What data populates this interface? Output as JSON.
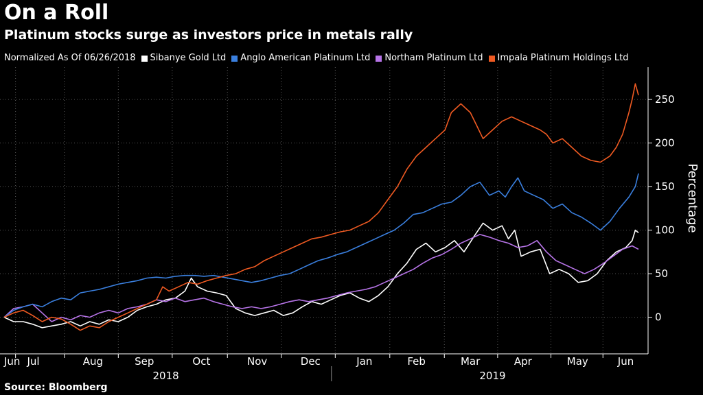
{
  "title": "On a Roll",
  "subtitle": "Platinum stocks surge as investors price in metals rally",
  "legend_header": "Normalized As Of 06/26/2018",
  "source": "Source: Bloomberg",
  "chart_data": {
    "type": "line",
    "title": "On a Roll",
    "subtitle": "Platinum stocks surge as investors price in metals rally",
    "xlabel": "",
    "ylabel": "Percentage",
    "ylim": [
      -42,
      287
    ],
    "yticks": [
      0,
      50,
      100,
      150,
      200,
      250
    ],
    "x_range": [
      0,
      1
    ],
    "grid": true,
    "legend_position": "top",
    "x_month_labels": [
      {
        "label": "Jun",
        "x": 0.0
      },
      {
        "label": "Jul",
        "x": 0.046
      },
      {
        "label": "Aug",
        "x": 0.14
      },
      {
        "label": "Sep",
        "x": 0.221
      },
      {
        "label": "Oct",
        "x": 0.311
      },
      {
        "label": "Nov",
        "x": 0.399
      },
      {
        "label": "Dec",
        "x": 0.483
      },
      {
        "label": "Jan",
        "x": 0.568
      },
      {
        "label": "Feb",
        "x": 0.65
      },
      {
        "label": "Mar",
        "x": 0.735
      },
      {
        "label": "Apr",
        "x": 0.818
      },
      {
        "label": "May",
        "x": 0.904
      },
      {
        "label": "Jun",
        "x": 0.98
      }
    ],
    "x_month_dividers": [
      0.018,
      0.095,
      0.18,
      0.265,
      0.352,
      0.437,
      0.522,
      0.608,
      0.694,
      0.778,
      0.862,
      0.944
    ],
    "x_year_labels": [
      {
        "label": "2018",
        "x": 0.255
      },
      {
        "label": "2019",
        "x": 0.77
      }
    ],
    "x_year_divider": 0.516,
    "series": [
      {
        "name": "Sibanye Gold Ltd",
        "color": "#ffffff",
        "points": [
          [
            0.0,
            0
          ],
          [
            0.015,
            -5
          ],
          [
            0.03,
            -5
          ],
          [
            0.045,
            -8
          ],
          [
            0.06,
            -12
          ],
          [
            0.075,
            -10
          ],
          [
            0.09,
            -8
          ],
          [
            0.105,
            -5
          ],
          [
            0.12,
            -10
          ],
          [
            0.135,
            -5
          ],
          [
            0.15,
            -8
          ],
          [
            0.165,
            -3
          ],
          [
            0.18,
            -5
          ],
          [
            0.195,
            0
          ],
          [
            0.21,
            8
          ],
          [
            0.225,
            12
          ],
          [
            0.24,
            15
          ],
          [
            0.255,
            20
          ],
          [
            0.27,
            22
          ],
          [
            0.285,
            30
          ],
          [
            0.295,
            45
          ],
          [
            0.305,
            35
          ],
          [
            0.32,
            30
          ],
          [
            0.335,
            28
          ],
          [
            0.35,
            25
          ],
          [
            0.365,
            10
          ],
          [
            0.38,
            5
          ],
          [
            0.395,
            2
          ],
          [
            0.41,
            5
          ],
          [
            0.425,
            8
          ],
          [
            0.44,
            2
          ],
          [
            0.455,
            5
          ],
          [
            0.47,
            12
          ],
          [
            0.485,
            18
          ],
          [
            0.5,
            15
          ],
          [
            0.515,
            20
          ],
          [
            0.53,
            25
          ],
          [
            0.545,
            28
          ],
          [
            0.56,
            22
          ],
          [
            0.575,
            18
          ],
          [
            0.59,
            25
          ],
          [
            0.605,
            35
          ],
          [
            0.62,
            50
          ],
          [
            0.635,
            62
          ],
          [
            0.65,
            78
          ],
          [
            0.665,
            85
          ],
          [
            0.68,
            75
          ],
          [
            0.695,
            80
          ],
          [
            0.71,
            88
          ],
          [
            0.725,
            75
          ],
          [
            0.74,
            92
          ],
          [
            0.755,
            108
          ],
          [
            0.77,
            100
          ],
          [
            0.785,
            105
          ],
          [
            0.795,
            90
          ],
          [
            0.805,
            100
          ],
          [
            0.815,
            70
          ],
          [
            0.83,
            75
          ],
          [
            0.845,
            78
          ],
          [
            0.86,
            50
          ],
          [
            0.875,
            55
          ],
          [
            0.89,
            50
          ],
          [
            0.905,
            40
          ],
          [
            0.92,
            42
          ],
          [
            0.935,
            50
          ],
          [
            0.95,
            65
          ],
          [
            0.965,
            75
          ],
          [
            0.98,
            80
          ],
          [
            0.99,
            88
          ],
          [
            0.995,
            100
          ],
          [
            1.0,
            97
          ]
        ]
      },
      {
        "name": "Anglo American Platinum Ltd",
        "color": "#3a7fde",
        "points": [
          [
            0.0,
            0
          ],
          [
            0.015,
            8
          ],
          [
            0.03,
            12
          ],
          [
            0.045,
            15
          ],
          [
            0.06,
            12
          ],
          [
            0.075,
            18
          ],
          [
            0.09,
            22
          ],
          [
            0.105,
            20
          ],
          [
            0.12,
            28
          ],
          [
            0.135,
            30
          ],
          [
            0.15,
            32
          ],
          [
            0.165,
            35
          ],
          [
            0.18,
            38
          ],
          [
            0.195,
            40
          ],
          [
            0.21,
            42
          ],
          [
            0.225,
            45
          ],
          [
            0.24,
            46
          ],
          [
            0.255,
            45
          ],
          [
            0.27,
            47
          ],
          [
            0.285,
            48
          ],
          [
            0.3,
            48
          ],
          [
            0.315,
            47
          ],
          [
            0.33,
            48
          ],
          [
            0.345,
            46
          ],
          [
            0.36,
            44
          ],
          [
            0.375,
            42
          ],
          [
            0.39,
            40
          ],
          [
            0.405,
            42
          ],
          [
            0.42,
            45
          ],
          [
            0.435,
            48
          ],
          [
            0.45,
            50
          ],
          [
            0.465,
            55
          ],
          [
            0.48,
            60
          ],
          [
            0.495,
            65
          ],
          [
            0.51,
            68
          ],
          [
            0.525,
            72
          ],
          [
            0.54,
            75
          ],
          [
            0.555,
            80
          ],
          [
            0.57,
            85
          ],
          [
            0.585,
            90
          ],
          [
            0.6,
            95
          ],
          [
            0.615,
            100
          ],
          [
            0.63,
            108
          ],
          [
            0.645,
            118
          ],
          [
            0.66,
            120
          ],
          [
            0.675,
            125
          ],
          [
            0.69,
            130
          ],
          [
            0.705,
            132
          ],
          [
            0.72,
            140
          ],
          [
            0.735,
            150
          ],
          [
            0.75,
            155
          ],
          [
            0.765,
            140
          ],
          [
            0.78,
            145
          ],
          [
            0.79,
            138
          ],
          [
            0.8,
            150
          ],
          [
            0.81,
            160
          ],
          [
            0.82,
            145
          ],
          [
            0.835,
            140
          ],
          [
            0.85,
            135
          ],
          [
            0.865,
            125
          ],
          [
            0.88,
            130
          ],
          [
            0.895,
            120
          ],
          [
            0.91,
            115
          ],
          [
            0.925,
            108
          ],
          [
            0.94,
            100
          ],
          [
            0.955,
            110
          ],
          [
            0.97,
            125
          ],
          [
            0.985,
            138
          ],
          [
            0.995,
            150
          ],
          [
            1.0,
            165
          ]
        ]
      },
      {
        "name": "Northam Platinum Ltd",
        "color": "#b774e8",
        "points": [
          [
            0.0,
            0
          ],
          [
            0.015,
            10
          ],
          [
            0.03,
            12
          ],
          [
            0.045,
            15
          ],
          [
            0.06,
            5
          ],
          [
            0.075,
            -5
          ],
          [
            0.09,
            0
          ],
          [
            0.105,
            -3
          ],
          [
            0.12,
            2
          ],
          [
            0.135,
            0
          ],
          [
            0.15,
            5
          ],
          [
            0.165,
            8
          ],
          [
            0.18,
            5
          ],
          [
            0.195,
            10
          ],
          [
            0.21,
            12
          ],
          [
            0.225,
            15
          ],
          [
            0.24,
            20
          ],
          [
            0.255,
            18
          ],
          [
            0.27,
            22
          ],
          [
            0.285,
            18
          ],
          [
            0.3,
            20
          ],
          [
            0.315,
            22
          ],
          [
            0.33,
            18
          ],
          [
            0.345,
            15
          ],
          [
            0.36,
            12
          ],
          [
            0.375,
            10
          ],
          [
            0.39,
            12
          ],
          [
            0.405,
            10
          ],
          [
            0.42,
            12
          ],
          [
            0.435,
            15
          ],
          [
            0.45,
            18
          ],
          [
            0.465,
            20
          ],
          [
            0.48,
            18
          ],
          [
            0.495,
            20
          ],
          [
            0.51,
            22
          ],
          [
            0.525,
            25
          ],
          [
            0.54,
            28
          ],
          [
            0.555,
            30
          ],
          [
            0.57,
            32
          ],
          [
            0.585,
            35
          ],
          [
            0.6,
            40
          ],
          [
            0.615,
            45
          ],
          [
            0.63,
            50
          ],
          [
            0.645,
            55
          ],
          [
            0.66,
            62
          ],
          [
            0.675,
            68
          ],
          [
            0.69,
            72
          ],
          [
            0.705,
            78
          ],
          [
            0.72,
            85
          ],
          [
            0.735,
            90
          ],
          [
            0.75,
            95
          ],
          [
            0.765,
            92
          ],
          [
            0.78,
            88
          ],
          [
            0.795,
            85
          ],
          [
            0.81,
            80
          ],
          [
            0.825,
            82
          ],
          [
            0.84,
            88
          ],
          [
            0.855,
            75
          ],
          [
            0.87,
            65
          ],
          [
            0.885,
            60
          ],
          [
            0.9,
            55
          ],
          [
            0.915,
            50
          ],
          [
            0.93,
            55
          ],
          [
            0.945,
            62
          ],
          [
            0.96,
            70
          ],
          [
            0.975,
            78
          ],
          [
            0.99,
            82
          ],
          [
            1.0,
            78
          ]
        ]
      },
      {
        "name": "Impala Platinum Holdings Ltd",
        "color": "#ef5a22",
        "points": [
          [
            0.0,
            0
          ],
          [
            0.015,
            5
          ],
          [
            0.03,
            8
          ],
          [
            0.045,
            2
          ],
          [
            0.06,
            -5
          ],
          [
            0.075,
            0
          ],
          [
            0.09,
            -2
          ],
          [
            0.105,
            -8
          ],
          [
            0.12,
            -15
          ],
          [
            0.135,
            -10
          ],
          [
            0.15,
            -12
          ],
          [
            0.165,
            -5
          ],
          [
            0.18,
            0
          ],
          [
            0.195,
            5
          ],
          [
            0.21,
            10
          ],
          [
            0.225,
            15
          ],
          [
            0.24,
            20
          ],
          [
            0.25,
            35
          ],
          [
            0.26,
            30
          ],
          [
            0.275,
            35
          ],
          [
            0.29,
            40
          ],
          [
            0.305,
            38
          ],
          [
            0.32,
            42
          ],
          [
            0.335,
            45
          ],
          [
            0.35,
            48
          ],
          [
            0.365,
            50
          ],
          [
            0.38,
            55
          ],
          [
            0.395,
            58
          ],
          [
            0.41,
            65
          ],
          [
            0.425,
            70
          ],
          [
            0.44,
            75
          ],
          [
            0.455,
            80
          ],
          [
            0.47,
            85
          ],
          [
            0.485,
            90
          ],
          [
            0.5,
            92
          ],
          [
            0.515,
            95
          ],
          [
            0.53,
            98
          ],
          [
            0.545,
            100
          ],
          [
            0.56,
            105
          ],
          [
            0.575,
            110
          ],
          [
            0.59,
            120
          ],
          [
            0.605,
            135
          ],
          [
            0.62,
            150
          ],
          [
            0.635,
            170
          ],
          [
            0.65,
            185
          ],
          [
            0.665,
            195
          ],
          [
            0.68,
            205
          ],
          [
            0.695,
            215
          ],
          [
            0.705,
            235
          ],
          [
            0.72,
            245
          ],
          [
            0.735,
            235
          ],
          [
            0.745,
            220
          ],
          [
            0.755,
            205
          ],
          [
            0.77,
            215
          ],
          [
            0.785,
            225
          ],
          [
            0.8,
            230
          ],
          [
            0.815,
            225
          ],
          [
            0.83,
            220
          ],
          [
            0.845,
            215
          ],
          [
            0.855,
            210
          ],
          [
            0.865,
            200
          ],
          [
            0.88,
            205
          ],
          [
            0.895,
            195
          ],
          [
            0.91,
            185
          ],
          [
            0.925,
            180
          ],
          [
            0.94,
            178
          ],
          [
            0.955,
            185
          ],
          [
            0.965,
            195
          ],
          [
            0.975,
            210
          ],
          [
            0.985,
            235
          ],
          [
            0.99,
            250
          ],
          [
            0.995,
            268
          ],
          [
            1.0,
            255
          ]
        ]
      }
    ]
  }
}
